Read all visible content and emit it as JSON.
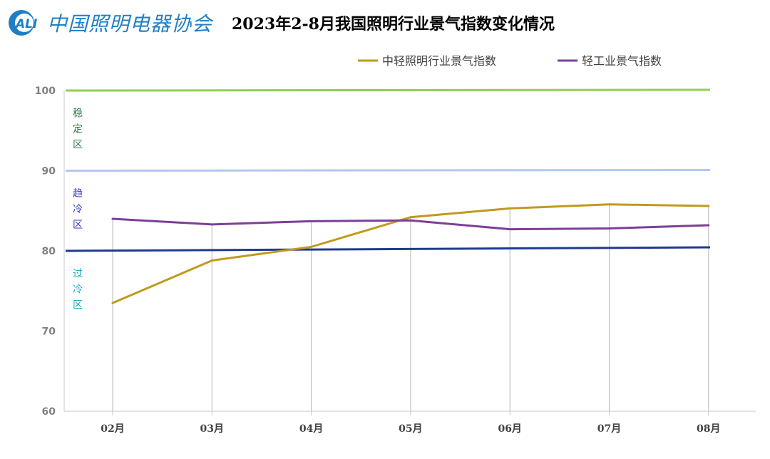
{
  "header": {
    "logo_abbr": "ALI",
    "logo_text": "中国照明电器协会"
  },
  "colors": {
    "series_light": "#c09a1e",
    "series_industry": "#7d3f98",
    "line_100": "#8fd14f",
    "line_90": "#b4c7f2",
    "line_80": "#1f3a93",
    "zone_stable": "#2e7d4f",
    "zone_hot": "#3a3ac8",
    "zone_cold": "#22a8c8",
    "logo": "#1f7fc4"
  },
  "chart_data": {
    "type": "line",
    "title": "2023年2-8月我国照明行业景气指数变化情况",
    "categories": [
      "02月",
      "03月",
      "04月",
      "05月",
      "06月",
      "07月",
      "08月"
    ],
    "series": [
      {
        "name": "中轻照明行业景气指数",
        "color_key": "series_light",
        "values": [
          73.5,
          78.8,
          80.5,
          84.2,
          85.3,
          85.8,
          85.6
        ]
      },
      {
        "name": "轻工业景气指数",
        "color_key": "series_industry",
        "values": [
          84.0,
          83.3,
          83.7,
          83.8,
          82.7,
          82.8,
          83.2
        ]
      }
    ],
    "reference_lines": [
      {
        "value": 100,
        "color_key": "line_100"
      },
      {
        "value": 90,
        "color_key": "line_90"
      },
      {
        "value": 80,
        "color_key": "line_80"
      }
    ],
    "zones": [
      {
        "label": "稳定区",
        "color_key": "zone_stable",
        "center": 95
      },
      {
        "label": "趋冷区",
        "color_key": "zone_hot",
        "center": 85
      },
      {
        "label": "过冷区",
        "color_key": "zone_cold",
        "center": 75
      }
    ],
    "y_ticks": [
      60,
      70,
      80,
      90,
      100
    ],
    "ylim": [
      60,
      100
    ],
    "legend_position": "top-right",
    "grid": false
  }
}
